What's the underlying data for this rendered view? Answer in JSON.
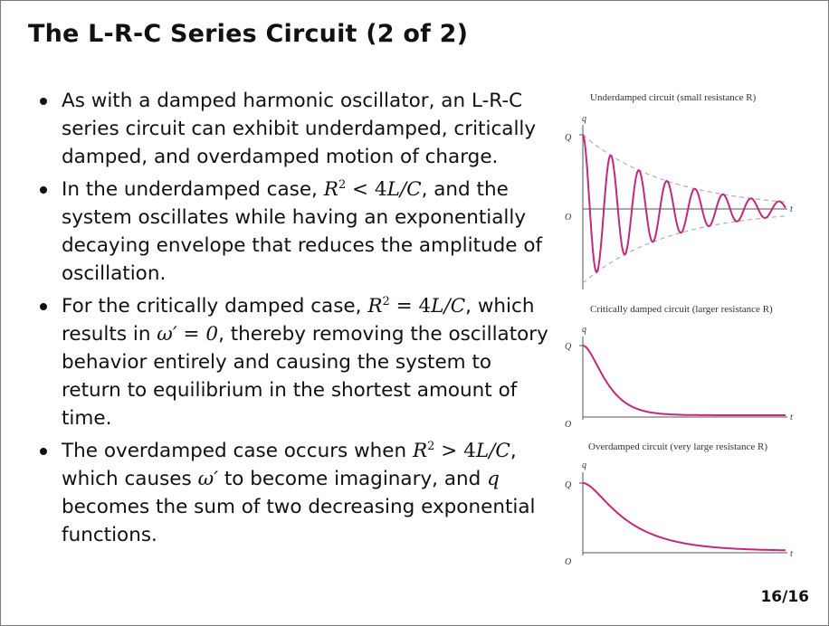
{
  "slide": {
    "title": "The L-R-C Series Circuit (2 of 2)",
    "page": "16/16"
  },
  "bullets": [
    {
      "parts": [
        "As with a damped harmonic oscillator, an L-R-C series circuit can exhibit underdamped, critically damped, and overdamped motion of charge."
      ]
    },
    {
      "parts": [
        "In the underdamped case, ",
        "R",
        "2",
        " < 4",
        "L/C",
        ", and the system oscillates while having an exponentially decaying envelope that reduces the amplitude of oscillation."
      ]
    },
    {
      "parts": [
        "For the critically damped case, ",
        "R",
        "2",
        " = 4",
        "L/C",
        ", which results in ",
        "ω′ = 0",
        ", thereby removing the oscillatory behavior entirely and causing the system to return to equilibrium in the shortest amount of time."
      ]
    },
    {
      "parts": [
        "The overdamped case occurs when ",
        "R",
        "2",
        " > 4",
        "L/C",
        ",",
        " which causes ",
        "ω′",
        " to become imaginary, and ",
        "q",
        " becomes the sum of two decreasing exponential functions."
      ]
    }
  ],
  "figures": [
    {
      "caption": "Underdamped circuit (small resistance R)",
      "y_axis": "q",
      "y_mark": "Q",
      "origin": "O",
      "x_axis": "t",
      "curve": "underdamped",
      "curve_color": "#c2287e",
      "envelope_color": "#aaaaaa"
    },
    {
      "caption": "Critically damped circuit (larger resistance R)",
      "y_axis": "q",
      "y_mark": "Q",
      "origin": "O",
      "x_axis": "t",
      "curve": "critical",
      "curve_color": "#c2287e"
    },
    {
      "caption": "Overdamped circuit (very large resistance R)",
      "y_axis": "q",
      "y_mark": "Q",
      "origin": "O",
      "x_axis": "t",
      "curve": "overdamped",
      "curve_color": "#c2287e"
    }
  ]
}
